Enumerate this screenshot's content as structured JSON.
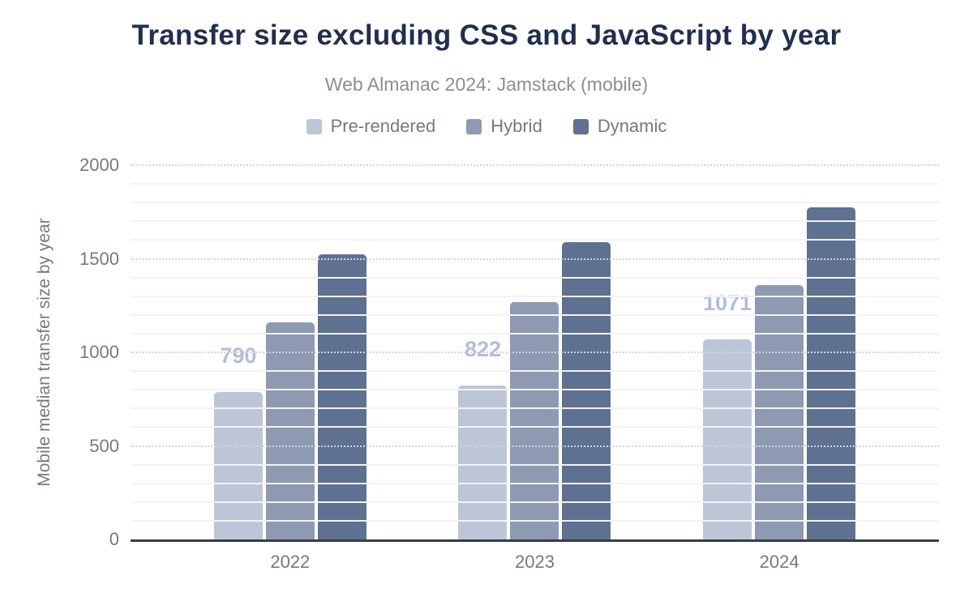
{
  "header": {
    "title": "Transfer size excluding CSS and JavaScript by year",
    "subtitle": "Web Almanac 2024: Jamstack (mobile)"
  },
  "colors": {
    "title": "#1f2f50",
    "text_gray": "#75797f",
    "subtitle_gray": "#8a8e94",
    "axis_line": "#363d4a",
    "grid_major_dotted": "#d2d5da",
    "grid_minor": "#f2f3f6",
    "data_label": "#b2bed7",
    "background": "#ffffff",
    "series_pre_rendered": "#bdc6d7",
    "series_hybrid": "#8e9ab2",
    "series_dynamic": "#5f7190"
  },
  "chart_data": {
    "type": "bar",
    "title": "Transfer size excluding CSS and JavaScript by year",
    "subtitle": "Web Almanac 2024: Jamstack (mobile)",
    "categories": [
      "2022",
      "2023",
      "2024"
    ],
    "series": [
      {
        "name": "Pre-rendered",
        "color": "#bdc6d7",
        "values": [
          790,
          822,
          1071
        ],
        "labels": [
          "790",
          "822",
          "1071"
        ]
      },
      {
        "name": "Hybrid",
        "color": "#8e9ab2",
        "values": [
          1160,
          1270,
          1360
        ],
        "labels": null
      },
      {
        "name": "Dynamic",
        "color": "#5f7190",
        "values": [
          1525,
          1590,
          1775
        ],
        "labels": null
      }
    ],
    "xlabel": "",
    "ylabel": "Mobile median transfer size by year",
    "ylim": [
      0,
      2000
    ],
    "y_major_step": 500,
    "y_minor_step": 100,
    "y_ticks": [
      "0",
      "500",
      "1000",
      "1500",
      "2000"
    ],
    "grid": true,
    "legend_position": "top"
  }
}
